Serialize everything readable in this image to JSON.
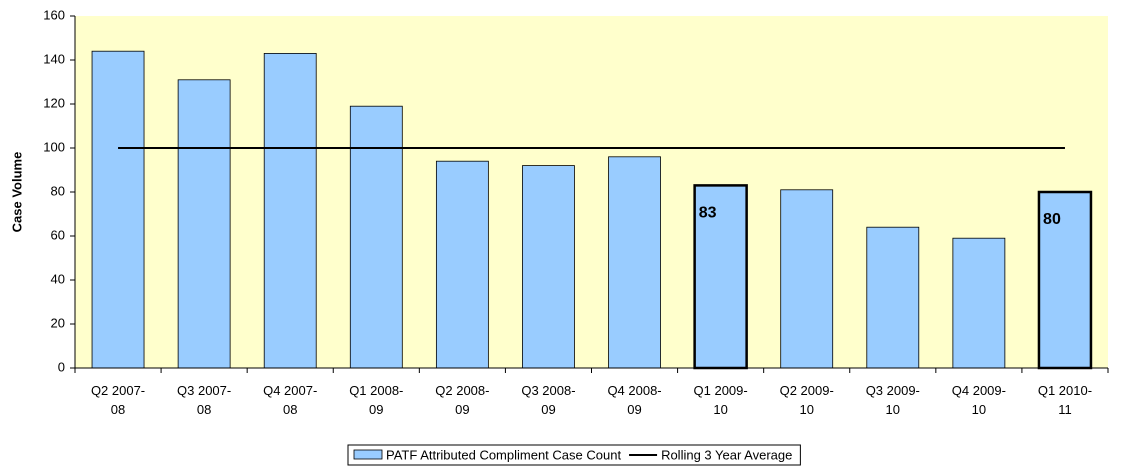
{
  "chart_data": {
    "type": "bar",
    "y_label": "Case Volume",
    "categories": [
      "Q2 2007-08",
      "Q3 2007-08",
      "Q4 2007-08",
      "Q1 2008-09",
      "Q2 2008-09",
      "Q3 2008-09",
      "Q4 2008-09",
      "Q1 2009-10",
      "Q2 2009-10",
      "Q3 2009-10",
      "Q4 2009-10",
      "Q1 2010-11"
    ],
    "series": [
      {
        "name": "PATF Attributed Compliment Case Count",
        "type": "bar",
        "color": "#99ccff",
        "values": [
          144,
          131,
          143,
          119,
          94,
          92,
          96,
          83,
          81,
          64,
          59,
          80
        ]
      },
      {
        "name": "Rolling 3 Year Average",
        "type": "line",
        "color": "#000000",
        "values": [
          100,
          100,
          100,
          100,
          100,
          100,
          100,
          100,
          100,
          100,
          100,
          100
        ]
      }
    ],
    "highlighted_categories": [
      "Q1 2009-10",
      "Q1 2010-11"
    ],
    "ylim": [
      0,
      160
    ],
    "yticks": [
      0,
      20,
      40,
      60,
      80,
      100,
      120,
      140,
      160
    ],
    "plot_background": "#ffffcc",
    "legend": "bottom"
  }
}
